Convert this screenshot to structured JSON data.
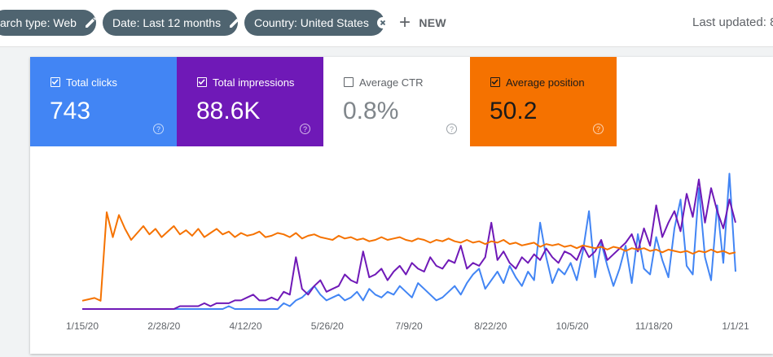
{
  "filters": {
    "search_type": "arch type: Web",
    "date": "Date: Last 12 months",
    "country": "Country: United States",
    "new_label": "NEW"
  },
  "last_updated": "Last updated: 8",
  "metrics": {
    "clicks": {
      "label": "Total clicks",
      "value": "743",
      "checked": true,
      "color": "#4285f4"
    },
    "impressions": {
      "label": "Total impressions",
      "value": "88.6K",
      "checked": true,
      "color": "#6f19b7"
    },
    "ctr": {
      "label": "Average CTR",
      "value": "0.8%",
      "checked": false,
      "color": "#ffffff"
    },
    "position": {
      "label": "Average position",
      "value": "50.2",
      "checked": true,
      "color": "#f57200"
    }
  },
  "help_glyph": "?",
  "chart_data": {
    "type": "line",
    "x_ticks": [
      "1/15/20",
      "2/28/20",
      "4/12/20",
      "5/26/20",
      "7/9/20",
      "8/22/20",
      "10/5/20",
      "11/18/20",
      "1/1/21"
    ],
    "series": [
      {
        "name": "Total clicks",
        "color": "#4285f4",
        "values": [
          0,
          0,
          0,
          0,
          0,
          0,
          0,
          0,
          0,
          0,
          0,
          0,
          0,
          0,
          0,
          0,
          0,
          0,
          0,
          0,
          0,
          0,
          0,
          0,
          1,
          0,
          0,
          0,
          0,
          0,
          0,
          0,
          0,
          2,
          1,
          3,
          4,
          6,
          8,
          5,
          3,
          4,
          5,
          3,
          4,
          6,
          3,
          7,
          5,
          4,
          6,
          5,
          8,
          6,
          4,
          9,
          7,
          5,
          3,
          4,
          6,
          8,
          5,
          9,
          12,
          14,
          7,
          10,
          13,
          9,
          15,
          11,
          8,
          13,
          10,
          30,
          18,
          9,
          14,
          12,
          16,
          10,
          20,
          34,
          11,
          23,
          15,
          8,
          14,
          22,
          9,
          26,
          14,
          12,
          25,
          17,
          11,
          28,
          38,
          15,
          12,
          42,
          18,
          10,
          36,
          16,
          47,
          13
        ]
      },
      {
        "name": "Total impressions",
        "color": "#6f19b7",
        "values": [
          0,
          0,
          0,
          0,
          0,
          0,
          0,
          0,
          0,
          0,
          0,
          0,
          0,
          0,
          0,
          0,
          1,
          1,
          1,
          1,
          2,
          1,
          2,
          2,
          2,
          3,
          3,
          4,
          5,
          3,
          3,
          4,
          3,
          6,
          5,
          18,
          7,
          5,
          8,
          10,
          6,
          7,
          8,
          12,
          10,
          9,
          20,
          11,
          12,
          14,
          10,
          13,
          15,
          12,
          16,
          14,
          13,
          18,
          15,
          14,
          17,
          16,
          22,
          14,
          16,
          15,
          18,
          30,
          17,
          20,
          16,
          14,
          18,
          16,
          19,
          17,
          21,
          18,
          16,
          20,
          19,
          17,
          22,
          18,
          20,
          24,
          17,
          19,
          21,
          23,
          26,
          20,
          28,
          22,
          36,
          25,
          30,
          34,
          27,
          40,
          32,
          45,
          30,
          42,
          34,
          28,
          38,
          30
        ]
      },
      {
        "name": "Average position",
        "color": "#f57200",
        "values": [
          6,
          7,
          8,
          6,
          70,
          52,
          68,
          58,
          50,
          55,
          60,
          54,
          58,
          52,
          56,
          60,
          54,
          57,
          53,
          58,
          52,
          55,
          58,
          54,
          56,
          52,
          55,
          53,
          54,
          56,
          52,
          53,
          55,
          54,
          52,
          55,
          51,
          53,
          54,
          52,
          51,
          50,
          53,
          51,
          52,
          50,
          51,
          49,
          50,
          52,
          50,
          51,
          52,
          50,
          49,
          51,
          50,
          48,
          50,
          49,
          51,
          49,
          48,
          50,
          48,
          49,
          47,
          49,
          48,
          50,
          47,
          48,
          46,
          47,
          48,
          45,
          47,
          46,
          47,
          45,
          46,
          44,
          46,
          45,
          44,
          45,
          43,
          45,
          44,
          42,
          44,
          43,
          44,
          42,
          43,
          41,
          43,
          42,
          41,
          42,
          40,
          42,
          41,
          43,
          41,
          42,
          40,
          41
        ]
      }
    ]
  }
}
